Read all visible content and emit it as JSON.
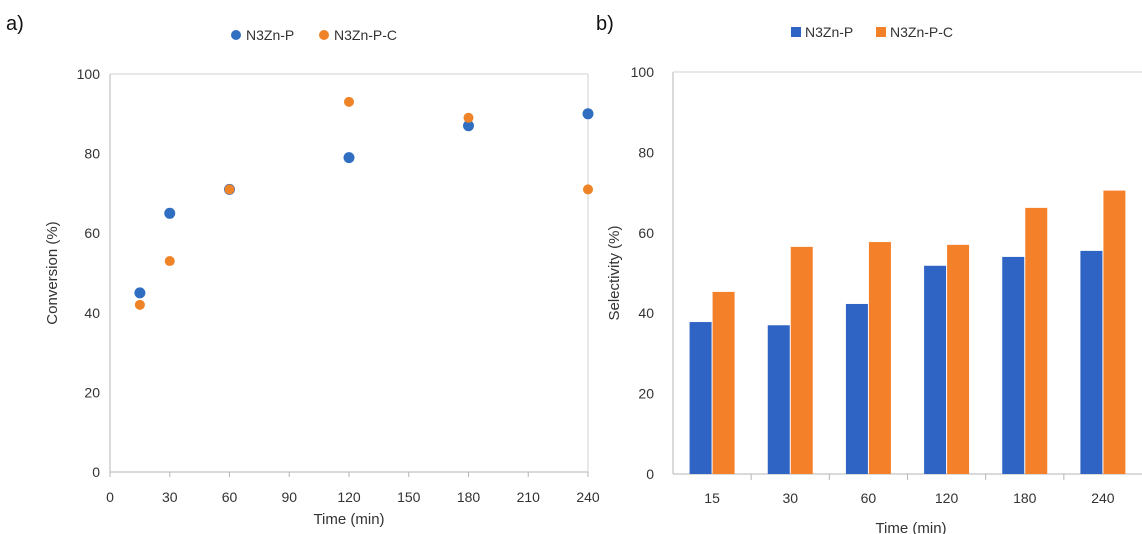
{
  "chart_data": [
    {
      "type": "scatter",
      "panel_label": "a)",
      "xlabel": "Time (min)",
      "ylabel": "Conversion (%)",
      "xlim": [
        0,
        240
      ],
      "ylim": [
        0,
        100
      ],
      "xticks": [
        "0",
        "30",
        "60",
        "90",
        "120",
        "150",
        "180",
        "210",
        "240"
      ],
      "yticks": [
        "0",
        "20",
        "40",
        "60",
        "80",
        "100"
      ],
      "grid": false,
      "legend_position": "top",
      "series": [
        {
          "name": "N3Zn-P",
          "color": "#2f6ec1",
          "x": [
            15,
            30,
            60,
            120,
            180,
            240
          ],
          "y": [
            45,
            65,
            71,
            79,
            87,
            90
          ]
        },
        {
          "name": "N3Zn-P-C",
          "color": "#ef8327",
          "x": [
            15,
            30,
            60,
            120,
            180,
            240
          ],
          "y": [
            42,
            53,
            71,
            93,
            89,
            71
          ]
        }
      ]
    },
    {
      "type": "bar",
      "panel_label": "b)",
      "xlabel": "Time (min)",
      "ylabel": "Selectivity  (%)",
      "categories": [
        "15",
        "30",
        "60",
        "120",
        "180",
        "240"
      ],
      "ylim": [
        0,
        100
      ],
      "yticks": [
        "0",
        "20",
        "40",
        "60",
        "80",
        "100"
      ],
      "grid": false,
      "legend_position": "top",
      "series": [
        {
          "name": "N3Zn-P",
          "color": "#2f63c4",
          "values": [
            37.8,
            37,
            42.3,
            51.8,
            54,
            55.5
          ]
        },
        {
          "name": "N3Zn-P-C",
          "color": "#f5802a",
          "values": [
            45.3,
            56.5,
            57.7,
            57,
            66.2,
            70.5
          ]
        }
      ]
    }
  ]
}
